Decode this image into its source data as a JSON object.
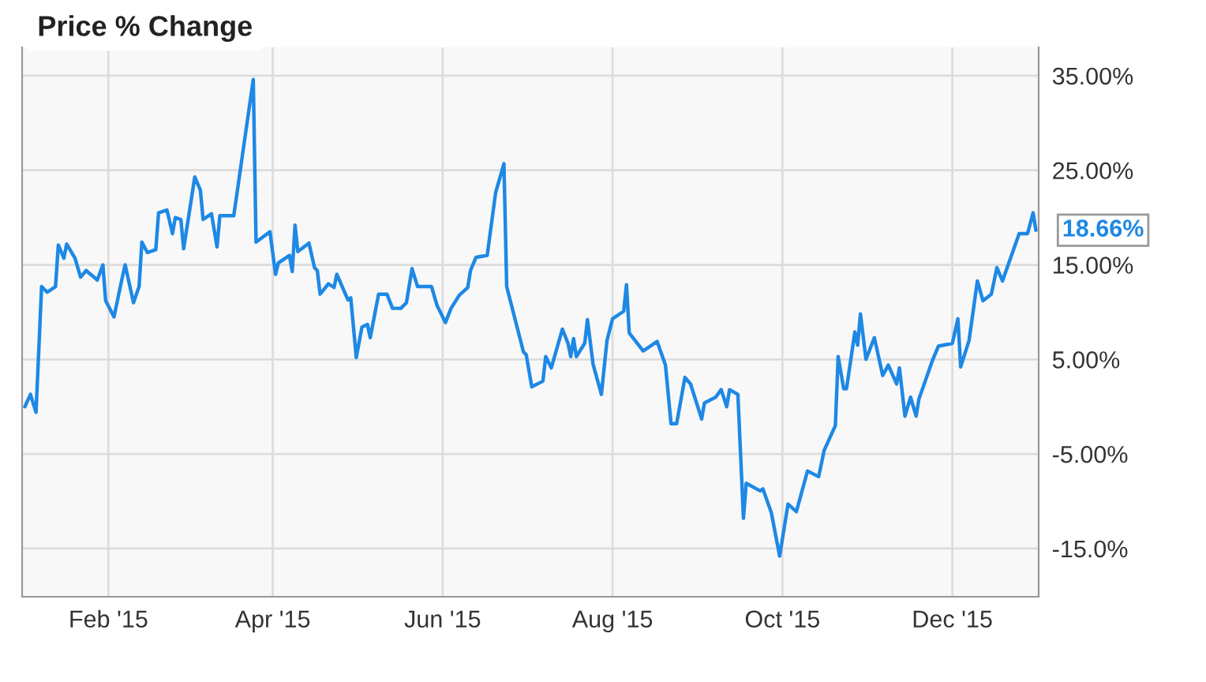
{
  "chart_data": {
    "type": "line",
    "title": "Price % Change",
    "x": [
      "2015-01-02",
      "2015-01-04",
      "2015-01-06",
      "2015-01-08",
      "2015-01-10",
      "2015-01-13",
      "2015-01-14",
      "2015-01-16",
      "2015-01-17",
      "2015-01-20",
      "2015-01-22",
      "2015-01-24",
      "2015-01-28",
      "2015-01-30",
      "2015-01-31",
      "2015-02-03",
      "2015-02-06",
      "2015-02-07",
      "2015-02-10",
      "2015-02-12",
      "2015-02-13",
      "2015-02-15",
      "2015-02-18",
      "2015-02-19",
      "2015-02-22",
      "2015-02-24",
      "2015-02-25",
      "2015-02-27",
      "2015-02-28",
      "2015-03-04",
      "2015-03-06",
      "2015-03-07",
      "2015-03-10",
      "2015-03-12",
      "2015-03-13",
      "2015-03-18",
      "2015-03-25",
      "2015-03-26",
      "2015-03-31",
      "2015-04-02",
      "2015-04-03",
      "2015-04-07",
      "2015-04-08",
      "2015-04-09",
      "2015-04-10",
      "2015-04-14",
      "2015-04-16",
      "2015-04-17",
      "2015-04-18",
      "2015-04-21",
      "2015-04-23",
      "2015-04-24",
      "2015-04-28",
      "2015-04-29",
      "2015-05-01",
      "2015-05-03",
      "2015-05-05",
      "2015-05-06",
      "2015-05-09",
      "2015-05-12",
      "2015-05-14",
      "2015-05-17",
      "2015-05-19",
      "2015-05-21",
      "2015-05-23",
      "2015-05-28",
      "2015-05-30",
      "2015-06-02",
      "2015-06-04",
      "2015-06-07",
      "2015-06-10",
      "2015-06-11",
      "2015-06-13",
      "2015-06-17",
      "2015-06-20",
      "2015-06-23",
      "2015-06-24",
      "2015-06-30",
      "2015-07-01",
      "2015-07-03",
      "2015-07-07",
      "2015-07-08",
      "2015-07-10",
      "2015-07-14",
      "2015-07-16",
      "2015-07-17",
      "2015-07-18",
      "2015-07-19",
      "2015-07-22",
      "2015-07-23",
      "2015-07-25",
      "2015-07-28",
      "2015-07-30",
      "2015-08-01",
      "2015-08-05",
      "2015-08-06",
      "2015-08-07",
      "2015-08-12",
      "2015-08-17",
      "2015-08-20",
      "2015-08-22",
      "2015-08-24",
      "2015-08-27",
      "2015-08-29",
      "2015-09-02",
      "2015-09-03",
      "2015-09-07",
      "2015-09-09",
      "2015-09-11",
      "2015-09-12",
      "2015-09-15",
      "2015-09-17",
      "2015-09-18",
      "2015-09-23",
      "2015-09-24",
      "2015-09-27",
      "2015-09-30",
      "2015-10-03",
      "2015-10-06",
      "2015-10-10",
      "2015-10-14",
      "2015-10-16",
      "2015-10-20",
      "2015-10-21",
      "2015-10-23",
      "2015-10-24",
      "2015-10-27",
      "2015-10-28",
      "2015-10-29",
      "2015-10-31",
      "2015-11-03",
      "2015-11-06",
      "2015-11-08",
      "2015-11-11",
      "2015-11-12",
      "2015-11-14",
      "2015-11-16",
      "2015-11-18",
      "2015-11-19",
      "2015-11-24",
      "2015-11-26",
      "2015-12-01",
      "2015-12-03",
      "2015-12-04",
      "2015-12-07",
      "2015-12-10",
      "2015-12-12",
      "2015-12-15",
      "2015-12-17",
      "2015-12-19",
      "2015-12-22",
      "2015-12-25",
      "2015-12-28",
      "2015-12-30",
      "2015-12-31"
    ],
    "series": [
      {
        "color": "#1e88e5",
        "values": [
          0.0,
          1.3,
          -0.6,
          12.7,
          12.1,
          12.7,
          17.1,
          15.7,
          17.2,
          15.7,
          13.7,
          14.4,
          13.4,
          15.0,
          11.2,
          9.5,
          13.7,
          15.0,
          11.0,
          12.7,
          17.4,
          16.3,
          16.6,
          20.5,
          20.8,
          18.3,
          20.0,
          19.8,
          16.7,
          24.3,
          22.9,
          19.8,
          20.4,
          16.9,
          20.2,
          20.2,
          34.6,
          17.4,
          18.5,
          14.0,
          15.2,
          16.0,
          14.3,
          19.2,
          16.4,
          17.3,
          14.7,
          14.4,
          11.9,
          13.0,
          12.6,
          14.0,
          11.3,
          11.5,
          5.2,
          8.4,
          8.7,
          7.3,
          11.9,
          11.9,
          10.4,
          10.4,
          11.0,
          14.6,
          12.7,
          12.7,
          10.7,
          8.9,
          10.4,
          11.8,
          12.6,
          14.4,
          15.8,
          16.0,
          22.6,
          25.7,
          12.7,
          5.8,
          5.5,
          2.1,
          2.7,
          5.3,
          4.1,
          8.2,
          6.7,
          5.3,
          7.2,
          5.3,
          6.7,
          9.2,
          4.5,
          1.3,
          7.0,
          9.3,
          10.1,
          12.9,
          7.8,
          5.9,
          6.9,
          4.4,
          -1.8,
          -1.8,
          3.1,
          2.4,
          -1.3,
          0.4,
          1.0,
          1.8,
          0.0,
          1.8,
          1.3,
          -11.8,
          -8.1,
          -8.9,
          -8.7,
          -11.2,
          -15.8,
          -10.3,
          -11.1,
          -6.8,
          -7.4,
          -4.6,
          -2.0,
          5.3,
          1.9,
          1.9,
          7.9,
          6.5,
          9.8,
          5.0,
          7.3,
          3.3,
          4.4,
          2.4,
          4.1,
          -1.0,
          1.0,
          -1.0,
          0.8,
          5.0,
          6.4,
          6.7,
          9.3,
          4.2,
          7.0,
          13.3,
          11.2,
          11.9,
          14.7,
          13.3,
          15.8,
          18.3,
          18.3,
          20.5,
          18.66
        ]
      }
    ],
    "xlim": [
      "2015-01-01",
      "2016-01-01"
    ],
    "xticks": [
      {
        "value": "2015-02-01",
        "label": "Feb '15"
      },
      {
        "value": "2015-04-01",
        "label": "Apr '15"
      },
      {
        "value": "2015-06-01",
        "label": "Jun '15"
      },
      {
        "value": "2015-08-01",
        "label": "Aug '15"
      },
      {
        "value": "2015-10-01",
        "label": "Oct '15"
      },
      {
        "value": "2015-12-01",
        "label": "Dec '15"
      }
    ],
    "ylim": [
      -20.1,
      38
    ],
    "yticks": [
      {
        "value": 35,
        "label": "35.00%"
      },
      {
        "value": 25,
        "label": "25.00%"
      },
      {
        "value": 15,
        "label": "15.00%"
      },
      {
        "value": 5,
        "label": "5.00%"
      },
      {
        "value": -5,
        "label": "-5.00%"
      },
      {
        "value": -15,
        "label": "-15.0%"
      }
    ],
    "grid": true,
    "annotations": [
      {
        "text": "18.66%",
        "x": "2015-12-31",
        "y": 18.66
      }
    ]
  }
}
